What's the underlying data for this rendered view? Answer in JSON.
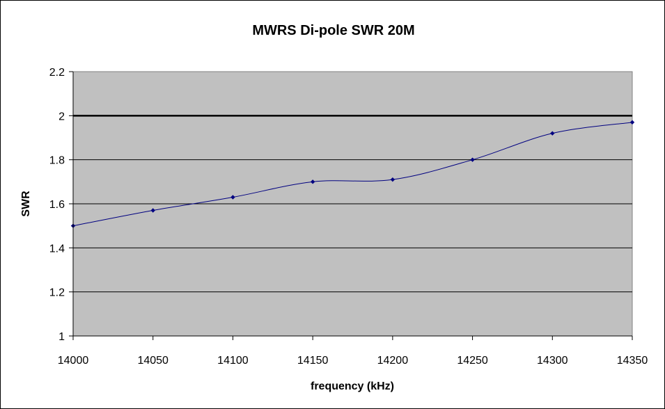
{
  "chart_data": {
    "type": "line",
    "title": "MWRS Di-pole SWR 20M",
    "xlabel": "frequency (kHz)",
    "ylabel": "SWR",
    "xlim": [
      14000,
      14350
    ],
    "ylim": [
      1,
      2.2
    ],
    "x_ticks": [
      14000,
      14050,
      14100,
      14150,
      14200,
      14250,
      14300,
      14350
    ],
    "y_ticks": [
      1,
      1.2,
      1.4,
      1.6,
      1.8,
      2,
      2.2
    ],
    "y_tick_labels": [
      "1",
      "1.2",
      "1.4",
      "1.6",
      "1.8",
      "2",
      "2.2"
    ],
    "grid": "horizontal",
    "legend": "none",
    "reference_line": {
      "y": 2
    },
    "series": [
      {
        "x": [
          14000,
          14050,
          14100,
          14150,
          14200,
          14250,
          14300,
          14350
        ],
        "y": [
          1.5,
          1.57,
          1.63,
          1.7,
          1.71,
          1.8,
          1.92,
          1.97
        ],
        "color": "#000080"
      }
    ],
    "colors": {
      "plot_background": "#C0C0C0",
      "gridline": "#000000",
      "series": "#000080",
      "reference_line": "#000000"
    }
  }
}
